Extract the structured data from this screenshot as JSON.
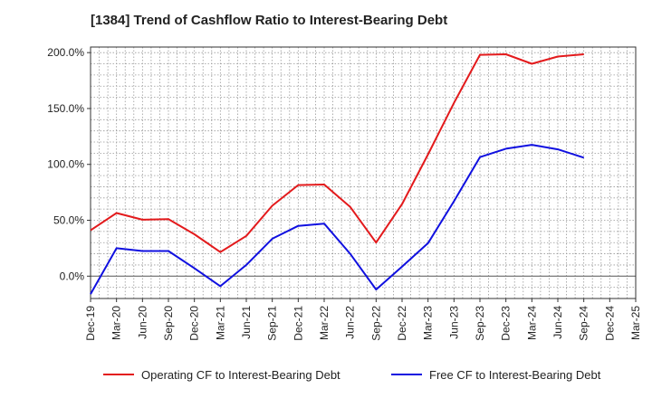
{
  "chart_data": {
    "type": "line",
    "title": "[1384]  Trend of Cashflow Ratio to Interest-Bearing Debt",
    "xlabel": "",
    "ylabel": "",
    "categories": [
      "Dec-19",
      "Mar-20",
      "Jun-20",
      "Sep-20",
      "Dec-20",
      "Mar-21",
      "Jun-21",
      "Sep-21",
      "Dec-21",
      "Mar-22",
      "Jun-22",
      "Sep-22",
      "Dec-22",
      "Mar-23",
      "Jun-23",
      "Sep-23",
      "Dec-23",
      "Mar-24",
      "Jun-24",
      "Sep-24",
      "Dec-24",
      "Mar-25"
    ],
    "x_tick_labels": [
      "Dec-19",
      "Mar-20",
      "Jun-20",
      "Sep-20",
      "Dec-20",
      "Mar-21",
      "Jun-21",
      "Sep-21",
      "Dec-21",
      "Mar-22",
      "Jun-22",
      "Sep-22",
      "Dec-22",
      "Mar-23",
      "Jun-23",
      "Sep-23",
      "Dec-23",
      "Mar-24",
      "Jun-24",
      "Sep-24",
      "Dec-24",
      "Mar-25"
    ],
    "y_ticks": [
      0,
      50,
      100,
      150,
      200
    ],
    "y_tick_labels": [
      "0.0%",
      "50.0%",
      "100.0%",
      "150.0%",
      "200.0%"
    ],
    "ylim": [
      -20,
      205
    ],
    "grid": true,
    "legend_position": "bottom",
    "series": [
      {
        "name": "Operating CF to Interest-Bearing Debt",
        "color": "#e31a1c",
        "values": [
          41,
          56.5,
          50.5,
          51,
          37.5,
          21.5,
          36,
          63,
          81.5,
          82,
          62,
          30,
          64.5,
          109,
          155,
          198,
          198.5,
          190,
          196.5,
          198.5,
          null,
          null
        ]
      },
      {
        "name": "Free CF to Interest-Bearing Debt",
        "color": "#1010e0",
        "values": [
          -16,
          25,
          22.5,
          22.5,
          7,
          -9,
          10,
          33.5,
          45,
          47,
          20,
          -12,
          8.5,
          29.5,
          67,
          106.5,
          114,
          117.5,
          113.5,
          106,
          null,
          null
        ]
      }
    ]
  }
}
